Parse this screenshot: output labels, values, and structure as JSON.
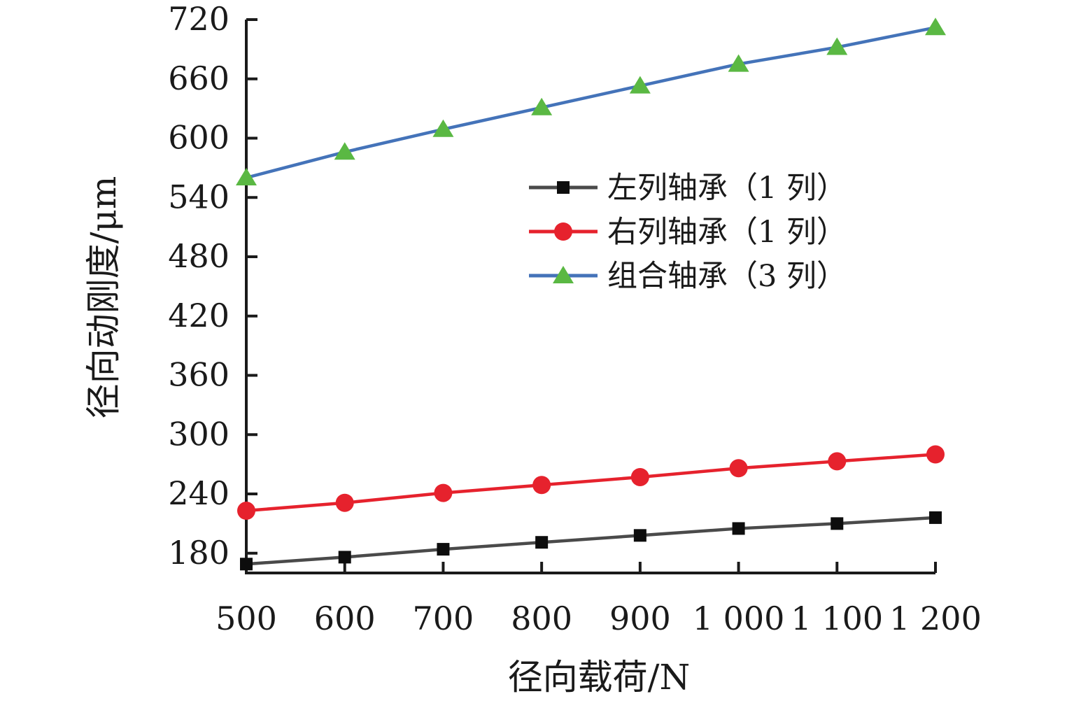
{
  "chart_data": {
    "type": "line",
    "x": [
      500,
      600,
      700,
      800,
      900,
      1000,
      1100,
      1200
    ],
    "series": [
      {
        "name": "左列轴承（1 列）",
        "marker": "square",
        "line_color": "#4a4a4a",
        "marker_color": "#0d0d0d",
        "values": [
          169,
          176,
          184,
          191,
          198,
          205,
          210,
          216
        ]
      },
      {
        "name": "右列轴承（1 列）",
        "marker": "circle",
        "line_color": "#e6222d",
        "marker_color": "#e6222d",
        "values": [
          223,
          231,
          241,
          249,
          257,
          266,
          273,
          280
        ]
      },
      {
        "name": "组合轴承（3 列）",
        "marker": "triangle",
        "line_color": "#4473b9",
        "marker_color": "#5ab843",
        "values": [
          560,
          586,
          609,
          631,
          653,
          675,
          692,
          712
        ]
      }
    ],
    "xlabel": "径向载荷/N",
    "ylabel": "径向动刚度/μm",
    "xlim": [
      500,
      1200
    ],
    "ylim": [
      160,
      720
    ],
    "x_ticks": [
      500,
      600,
      700,
      800,
      900,
      1000,
      1100,
      1200
    ],
    "x_tick_labels": [
      "500",
      "600",
      "700",
      "800",
      "900",
      "1 000",
      "1 100",
      "1 200"
    ],
    "y_ticks": [
      180,
      240,
      300,
      360,
      420,
      480,
      540,
      600,
      660,
      720
    ],
    "grid": false,
    "legend_position": "inside-upper-right",
    "axis_color": "#1a1a1a",
    "text_color": "#1a1a1a",
    "background_color": "#ffffff"
  }
}
